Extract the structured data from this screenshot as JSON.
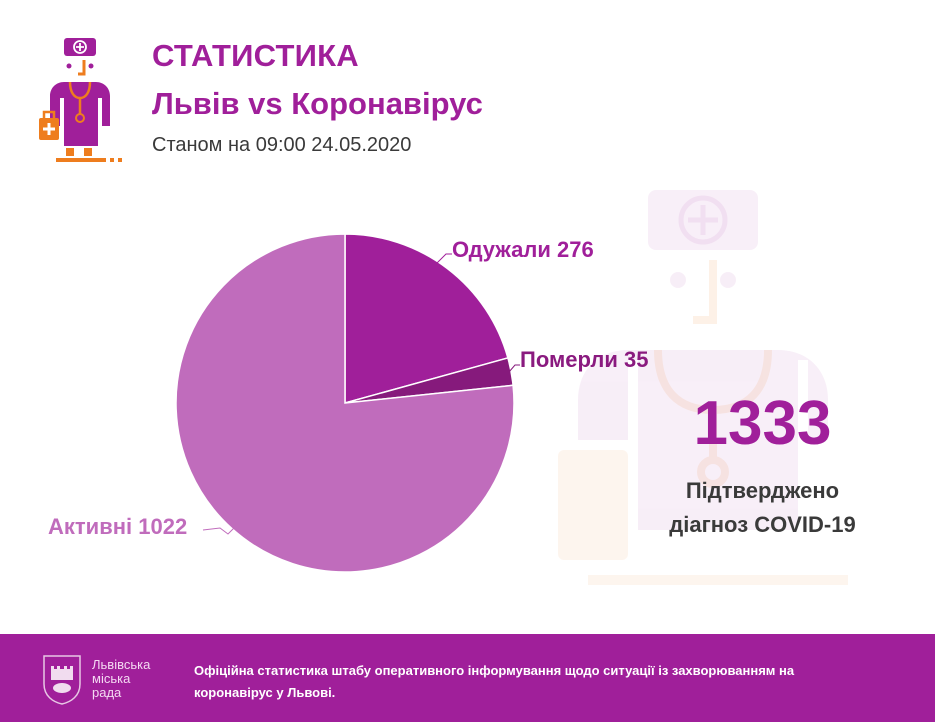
{
  "header": {
    "title": "СТАТИСТИКА",
    "subtitle": "Львів vs Коронавірус",
    "as_of": "Станом на 09:00 24.05.2020"
  },
  "chart_data": {
    "type": "pie",
    "title": "Львів vs Коронавірус",
    "slices": [
      {
        "label": "Одужали",
        "value": 276,
        "color": "#a01f9a"
      },
      {
        "label": "Померли",
        "value": 35,
        "color": "#861a7c"
      },
      {
        "label": "Активні",
        "value": 1022,
        "color": "#c06cbc"
      }
    ],
    "start_angle": "12 o'clock, clockwise",
    "total": 1333
  },
  "labels": {
    "recovered": "Одужали 276",
    "deceased": "Померли 35",
    "active": "Активні 1022"
  },
  "summary": {
    "total": "1333",
    "caption_line1": "Підтверджено",
    "caption_line2": "діагноз COVID-19"
  },
  "footer": {
    "council_line1": "Львівська",
    "council_line2": "міська",
    "council_line3": "рада",
    "note": "Офіційна статистика штабу оперативного інформування щодо ситуації із захворюванням на коронавірус у Львові."
  },
  "colors": {
    "brand_purple": "#a01f9a",
    "accent_orange": "#ee7d1e",
    "text_dark": "#3a3a3a"
  }
}
